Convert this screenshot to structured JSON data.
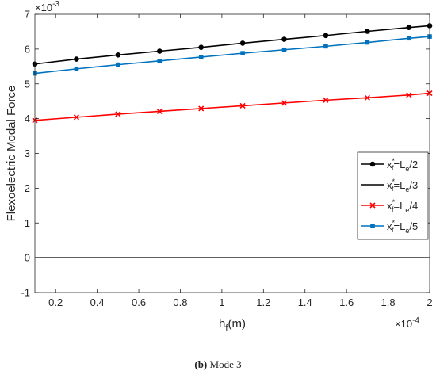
{
  "chart_data": {
    "type": "line",
    "ylabel": "Flexoelectric Modal Force",
    "xlabel": "h",
    "xlabel_sub": "f",
    "xlabel_unit": "(m)",
    "y_multiplier": "×10",
    "y_multiplier_exp": "-3",
    "x_multiplier": "×10",
    "x_multiplier_exp": "-4",
    "xlim": [
      0.1,
      2.0
    ],
    "ylim": [
      -1,
      7
    ],
    "xticks": [
      0.2,
      0.4,
      0.6,
      0.8,
      1,
      1.2,
      1.4,
      1.6,
      1.8,
      2
    ],
    "xtick_labels": [
      "0.2",
      "0.4",
      "0.6",
      "0.8",
      "1",
      "1.2",
      "1.4",
      "1.6",
      "1.8",
      "2"
    ],
    "yticks": [
      -1,
      0,
      1,
      2,
      3,
      4,
      5,
      6,
      7
    ],
    "ytick_labels": [
      "-1",
      "0",
      "1",
      "2",
      "3",
      "4",
      "5",
      "6",
      "7"
    ],
    "grid": false,
    "legend_position": "right",
    "x": [
      0.1,
      0.3,
      0.5,
      0.7,
      0.9,
      1.1,
      1.3,
      1.5,
      1.7,
      1.9,
      2.0
    ],
    "series": [
      {
        "name_parts": [
          "x",
          "*",
          "f",
          "=L",
          "e",
          "/2"
        ],
        "color": "#000000",
        "marker": "circle",
        "values": [
          5.57,
          5.71,
          5.83,
          5.94,
          6.05,
          6.17,
          6.28,
          6.39,
          6.51,
          6.62,
          6.67
        ]
      },
      {
        "name_parts": [
          "x",
          "*",
          "f",
          "=L",
          "e",
          "/3"
        ],
        "color": "#000000",
        "marker": "none",
        "values": [
          0,
          0,
          0,
          0,
          0,
          0,
          0,
          0,
          0,
          0,
          0
        ]
      },
      {
        "name_parts": [
          "x",
          "*",
          "f",
          "=L",
          "e",
          "/4"
        ],
        "color": "#ff0000",
        "marker": "x",
        "values": [
          3.95,
          4.04,
          4.13,
          4.21,
          4.29,
          4.37,
          4.45,
          4.53,
          4.6,
          4.68,
          4.73
        ]
      },
      {
        "name_parts": [
          "x",
          "*",
          "f",
          "=L",
          "e",
          "/5"
        ],
        "color": "#0072bd",
        "marker": "square",
        "values": [
          5.3,
          5.43,
          5.55,
          5.66,
          5.77,
          5.88,
          5.98,
          6.08,
          6.19,
          6.31,
          6.36
        ]
      }
    ]
  },
  "caption": {
    "label": "(b)",
    "text": " Mode 3"
  }
}
